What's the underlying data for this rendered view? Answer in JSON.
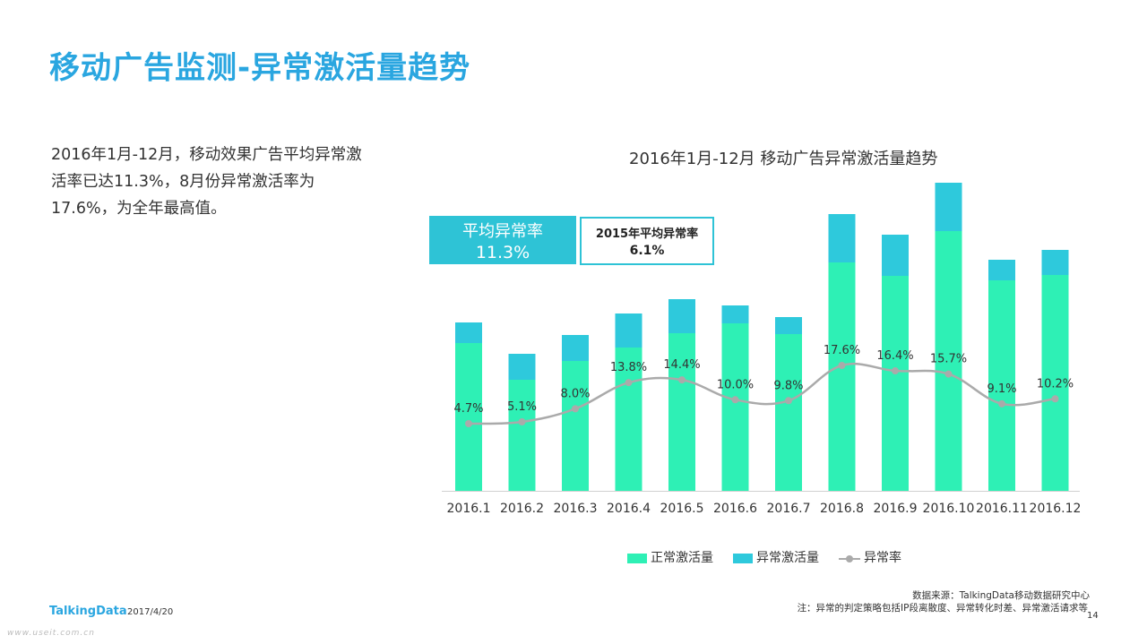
{
  "page": {
    "title": "移动广告监测-异常激活量趋势",
    "description": [
      "2016年1月-12月，移动效果广告平均异常激",
      "活率已达11.3%，8月份异常激活率为",
      "17.6%，为全年最高值。"
    ],
    "footer": {
      "source": "数据来源：TalkingData移动数据研究中心",
      "note": "注：异常的判定策略包括IP段离散度、异常转化时差、异常激活请求等",
      "logo": "TalkingData",
      "date": "2017/4/20",
      "page_number": "14",
      "watermark": "www.useit.com.cn"
    },
    "callouts": {
      "avg_label": "平均异常率",
      "avg_value": "11.3%",
      "prev_label": "2015年平均异常率",
      "prev_value": "6.1%"
    },
    "colors": {
      "title": "#2aa6e0",
      "normal": "#2ef0b5",
      "abnormal": "#2ec9dc",
      "rate_line": "#aaaaaa"
    }
  },
  "chart_data": {
    "type": "bar",
    "stacked": true,
    "title": "2016年1月-12月 移动广告异常激活量趋势",
    "categories": [
      "2016.1",
      "2016.2",
      "2016.3",
      "2016.4",
      "2016.5",
      "2016.6",
      "2016.7",
      "2016.8",
      "2016.9",
      "2016.10",
      "2016.11",
      "2016.12"
    ],
    "series": [
      {
        "name": "正常激活量",
        "values": [
          165,
          124,
          145,
          160,
          176,
          187,
          175,
          255,
          240,
          290,
          235,
          241
        ],
        "color": "#2ef0b5"
      },
      {
        "name": "异常激活量",
        "values": [
          23,
          29,
          29,
          38,
          38,
          20,
          19,
          54,
          46,
          54,
          23,
          28
        ],
        "color": "#2ec9dc"
      }
    ],
    "rate_series": {
      "name": "异常率",
      "values": [
        4.7,
        5.1,
        8.0,
        13.8,
        14.4,
        10.0,
        9.8,
        17.6,
        16.4,
        15.7,
        9.1,
        10.2
      ],
      "labels": [
        "4.7%",
        "5.1%",
        "8.0%",
        "13.8%",
        "14.4%",
        "10.0%",
        "9.8%",
        "17.6%",
        "16.4%",
        "15.7%",
        "9.1%",
        "10.2%"
      ],
      "color": "#aaaaaa"
    },
    "legend": [
      "正常激活量",
      "异常激活量",
      "异常率"
    ],
    "legend_position": "bottom",
    "grid": false
  }
}
